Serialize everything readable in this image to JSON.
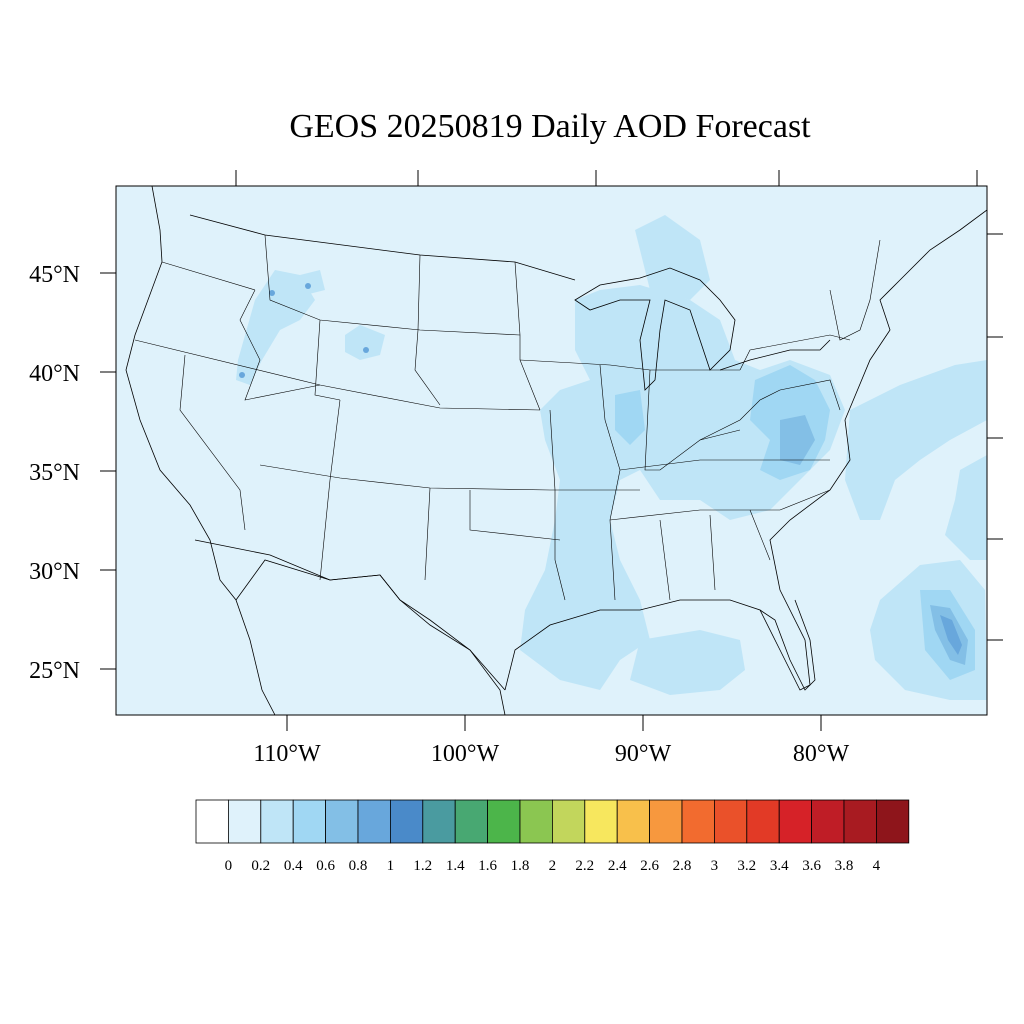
{
  "title": "GEOS 20250819 Daily AOD Forecast",
  "map": {
    "region": "Contiguous United States",
    "background_color": "#dff2fb",
    "lat_ticks": [
      "45°N",
      "40°N",
      "35°N",
      "30°N",
      "25°N"
    ],
    "lon_ticks": [
      "110°W",
      "100°W",
      "90°W",
      "80°W"
    ]
  },
  "colorbar": {
    "labels": [
      "0",
      "0.2",
      "0.4",
      "0.6",
      "0.8",
      "1",
      "1.2",
      "1.4",
      "1.6",
      "1.8",
      "2",
      "2.2",
      "2.4",
      "2.6",
      "2.8",
      "3",
      "3.2",
      "3.4",
      "3.6",
      "3.8",
      "4"
    ],
    "colors": [
      "#ffffff",
      "#dff2fb",
      "#bfe5f7",
      "#a0d7f3",
      "#83bfe6",
      "#68a7dc",
      "#4a8ac9",
      "#4a9ba0",
      "#48a872",
      "#4cb54a",
      "#8bc651",
      "#c2d65c",
      "#f7e75e",
      "#f8c04b",
      "#f7983e",
      "#f26b2f",
      "#ea512a",
      "#e23a26",
      "#d62228",
      "#bf1d26",
      "#a81b21",
      "#8e151b"
    ]
  }
}
